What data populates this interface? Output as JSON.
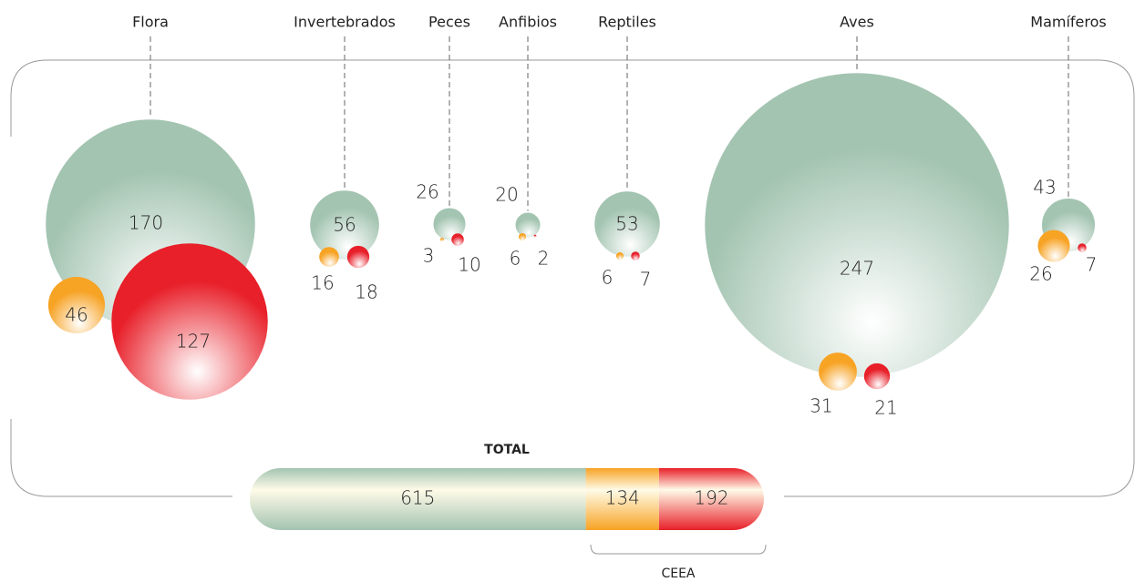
{
  "chart_data": {
    "type": "bubble",
    "categories": [
      "Flora",
      "Invertebrados",
      "Peces",
      "Anfibios",
      "Reptiles",
      "Aves",
      "Mamíferos"
    ],
    "series": [
      {
        "color": "#a3c4b1",
        "values": [
          170,
          56,
          26,
          20,
          53,
          247,
          43
        ]
      },
      {
        "color": "#f7a324",
        "values": [
          46,
          16,
          3,
          6,
          6,
          31,
          26
        ]
      },
      {
        "color": "#e8202a",
        "values": [
          127,
          18,
          10,
          2,
          7,
          21,
          7
        ]
      }
    ],
    "total": {
      "title": "TOTAL",
      "values": [
        615,
        134,
        192
      ],
      "bracket_label": "CEEA"
    }
  }
}
